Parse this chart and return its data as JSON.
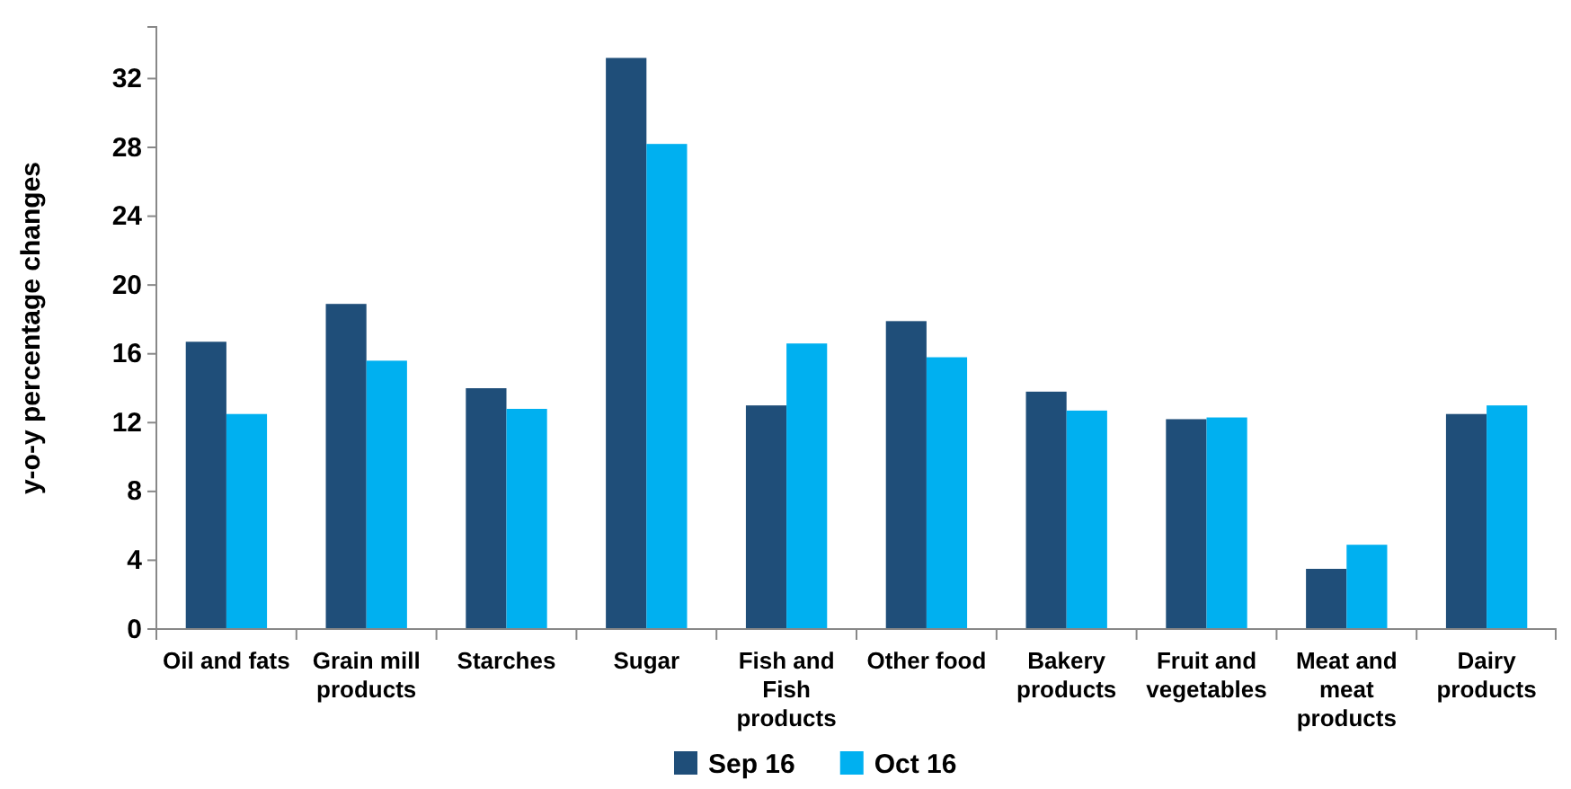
{
  "chart_data": {
    "type": "bar",
    "ylabel": "y-o-y percentage changes",
    "categories": [
      "Oil and fats",
      "Grain mill products",
      "Starches",
      "Sugar",
      "Fish and Fish products",
      "Other food",
      "Bakery products",
      "Fruit and vegetables",
      "Meat and meat products",
      "Dairy products"
    ],
    "series": [
      {
        "name": "Sep 16",
        "color": "#1f4e79",
        "values": [
          16.7,
          18.9,
          14.0,
          33.2,
          13.0,
          17.9,
          13.8,
          12.2,
          3.5,
          12.5
        ]
      },
      {
        "name": "Oct 16",
        "color": "#00b0f0",
        "values": [
          12.5,
          15.6,
          12.8,
          28.2,
          16.6,
          15.8,
          12.7,
          12.3,
          4.9,
          13.0
        ]
      }
    ],
    "ylim": [
      0,
      35
    ],
    "yticks": [
      0,
      4,
      8,
      12,
      16,
      20,
      24,
      28,
      32
    ],
    "grid": false,
    "legend": "bottom"
  }
}
